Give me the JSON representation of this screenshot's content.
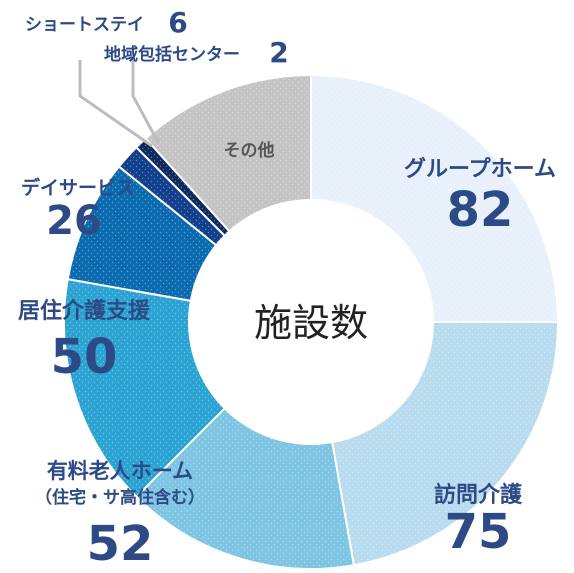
{
  "chart_data": {
    "type": "pie",
    "center_label": "施設数",
    "slices": [
      {
        "name": "グループホーム",
        "value": 82,
        "color": "#e8f1fb"
      },
      {
        "name": "訪問介護",
        "value": 75,
        "color": "#b9dbef"
      },
      {
        "name": "有料老人ホーム",
        "sublabel": "（住宅・サ高住含む）",
        "value": 52,
        "color": "#7ec4e3"
      },
      {
        "name": "居住介護支援",
        "value": 50,
        "color": "#2aa3d3"
      },
      {
        "name": "デイサービス",
        "value": 26,
        "color": "#0a6aaf"
      },
      {
        "name": "ショートステイ",
        "value": 6,
        "color": "#123f8c"
      },
      {
        "name": "地域包括センター",
        "value": 2,
        "color": "#0d2a5e"
      },
      {
        "name": "その他",
        "value": "",
        "color": "#c4c4c4"
      }
    ],
    "label_color": "#2d4a86",
    "other_label_color": "#555555"
  }
}
